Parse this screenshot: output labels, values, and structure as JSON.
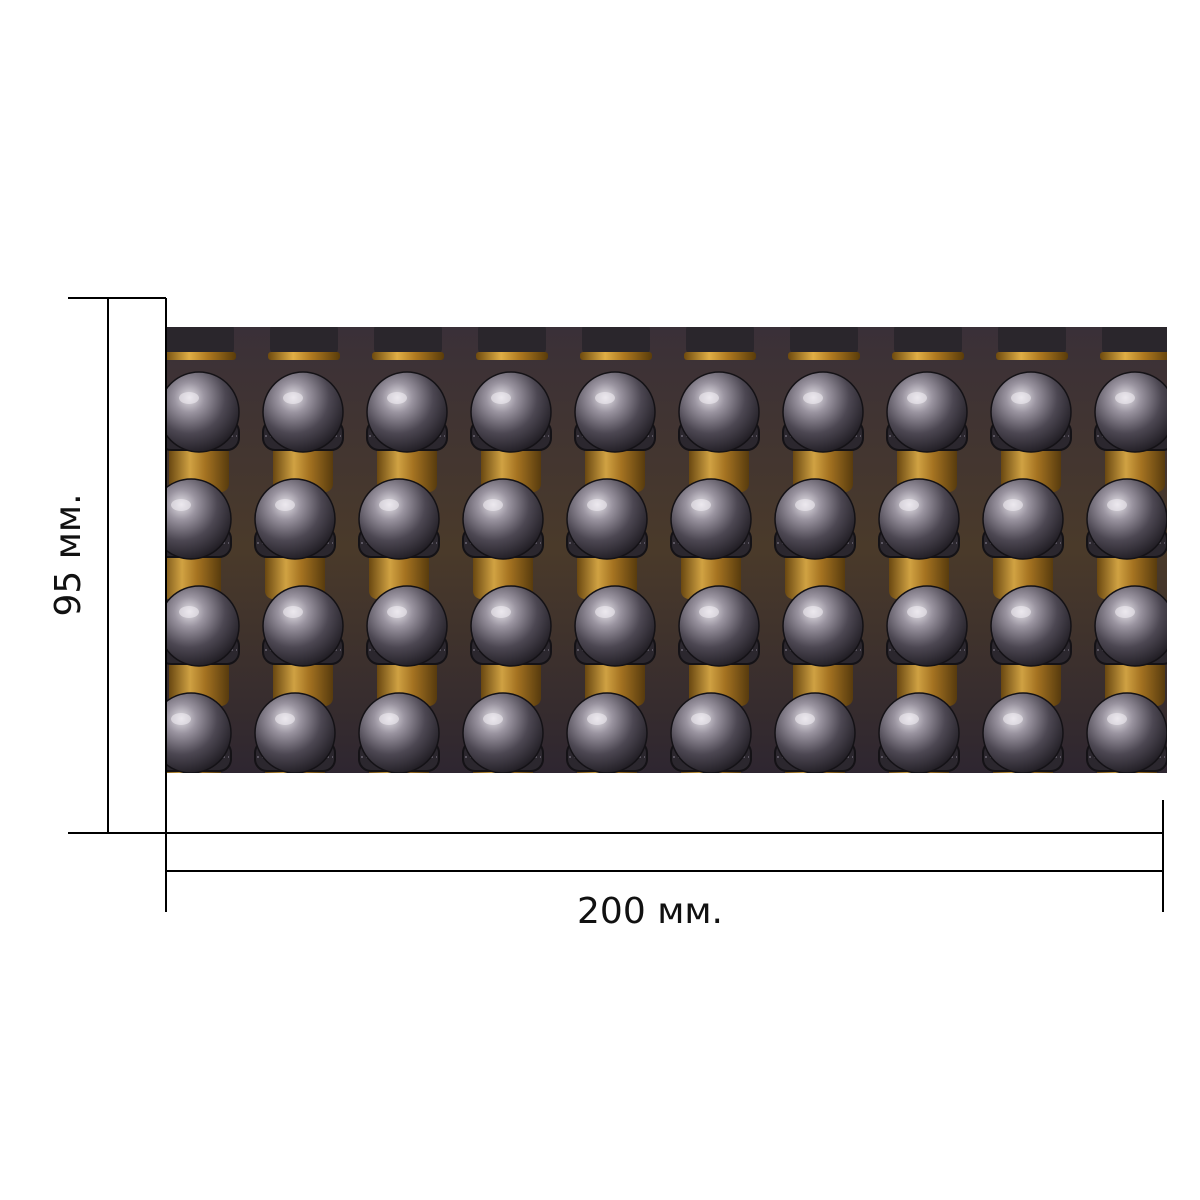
{
  "dimensions": {
    "width_label": "200 мм.",
    "height_label": "95 мм."
  },
  "photo": {
    "subject": "rows-of-lead-round-nose-bullets",
    "columns": 10,
    "rows": 5,
    "colors": {
      "background": "#2a2530",
      "brass": "#c8962e",
      "brass_dark": "#7a5512",
      "lead_light": "#d9d6dc",
      "lead_mid": "#6e6873",
      "lead_dark": "#1e1b22"
    }
  },
  "colors": {
    "line": "#000000",
    "page": "#ffffff"
  }
}
